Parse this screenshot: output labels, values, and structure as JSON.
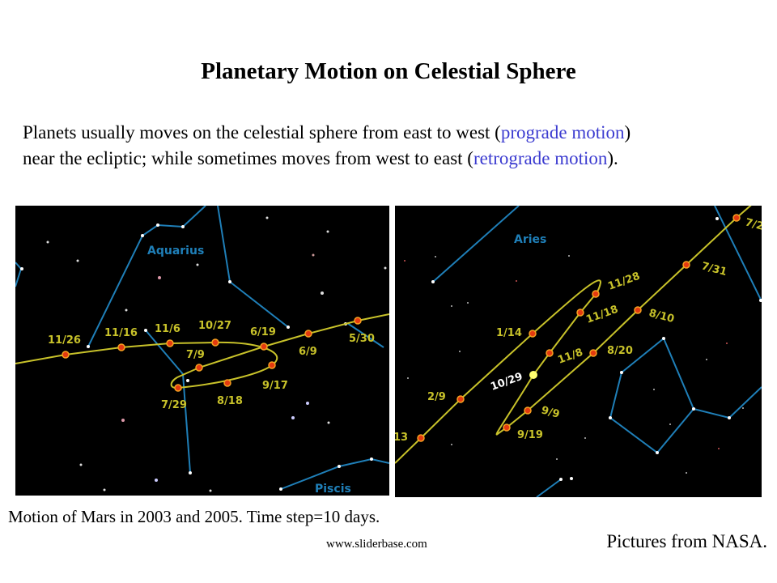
{
  "title": "Planetary Motion on Celestial Sphere",
  "body": {
    "p1": "Planets usually moves on the celestial sphere from east to west (",
    "prograde": "prograde motion",
    "p2": ")",
    "p3": "near the ecliptic; while sometimes moves from west to east (",
    "retrograde": "retrograde motion",
    "p4": ")."
  },
  "image_left": {
    "constellations": [
      "Aquarius",
      "Piscis"
    ],
    "dates": [
      "11/26",
      "11/16",
      "11/6",
      "10/27",
      "6/19",
      "7/9",
      "6/9",
      "5/30",
      "9/17",
      "8/18",
      "7/29"
    ]
  },
  "image_right": {
    "constellations": [
      "Aries"
    ],
    "dates": [
      "1/14",
      "2/9",
      "13",
      "10/29",
      "11/28",
      "11/18",
      "11/8",
      "8/20",
      "8/10",
      "7/31",
      "7/2",
      "9/9",
      "9/19"
    ]
  },
  "caption": "Motion of Mars in 2003 and 2005. Time step=10 days.",
  "website": "www.sliderbase.com",
  "credit": "Pictures from NASA.",
  "colors": {
    "path": "#c8c22a",
    "point": "#e33a10",
    "constellation": "#1f7fb8",
    "link": "#3b3bd0"
  }
}
